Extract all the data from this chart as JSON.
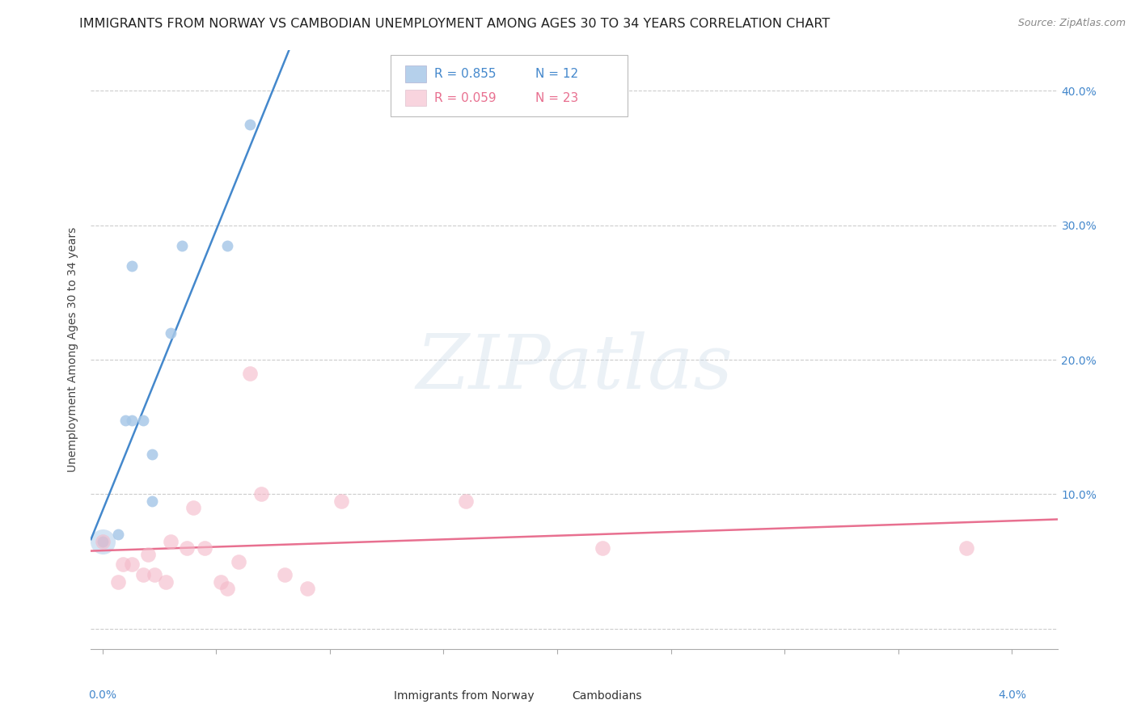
{
  "title": "IMMIGRANTS FROM NORWAY VS CAMBODIAN UNEMPLOYMENT AMONG AGES 30 TO 34 YEARS CORRELATION CHART",
  "source": "Source: ZipAtlas.com",
  "ylabel": "Unemployment Among Ages 30 to 34 years",
  "legend_norway": "Immigrants from Norway",
  "legend_cambodians": "Cambodians",
  "r_norway": "R = 0.855",
  "n_norway": "N = 12",
  "r_cambodian": "R = 0.059",
  "n_cambodian": "N = 23",
  "norway_color": "#a8c8e8",
  "cambodian_color": "#f4b8c8",
  "norway_line_color": "#4488cc",
  "cambodian_line_color": "#e87090",
  "background_color": "#ffffff",
  "norway_x": [
    0.0,
    0.07,
    0.1,
    0.13,
    0.13,
    0.18,
    0.22,
    0.22,
    0.3,
    0.35,
    0.55,
    0.65
  ],
  "norway_y": [
    0.065,
    0.07,
    0.155,
    0.155,
    0.27,
    0.155,
    0.13,
    0.095,
    0.22,
    0.285,
    0.285,
    0.375
  ],
  "cambodian_x": [
    0.0,
    0.07,
    0.09,
    0.13,
    0.18,
    0.2,
    0.23,
    0.28,
    0.3,
    0.37,
    0.4,
    0.45,
    0.52,
    0.55,
    0.6,
    0.65,
    0.7,
    0.8,
    0.9,
    1.05,
    1.6,
    2.2,
    3.8
  ],
  "cambodian_y": [
    0.065,
    0.035,
    0.048,
    0.048,
    0.04,
    0.055,
    0.04,
    0.035,
    0.065,
    0.06,
    0.09,
    0.06,
    0.035,
    0.03,
    0.05,
    0.19,
    0.1,
    0.04,
    0.03,
    0.095,
    0.095,
    0.06,
    0.06
  ],
  "xmin": -0.05,
  "xmax": 4.2,
  "ymin": -0.015,
  "ymax": 0.43,
  "yticks": [
    0.0,
    0.1,
    0.2,
    0.3,
    0.4
  ],
  "norway_size": 100,
  "cambodian_size": 180,
  "title_fontsize": 11.5,
  "axis_fontsize": 10,
  "legend_fontsize": 11,
  "watermark": "ZIPatlas"
}
